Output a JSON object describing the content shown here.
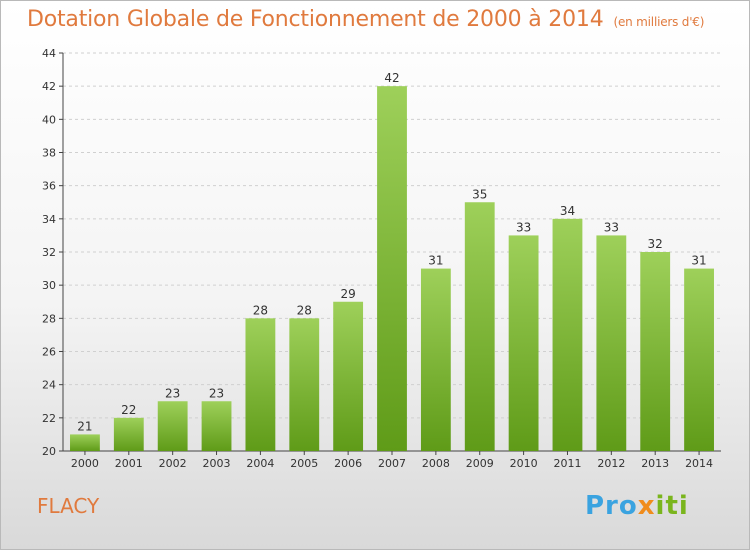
{
  "header": {
    "title": "Dotation Globale de Fonctionnement de 2000 à 2014",
    "subtitle": "(en milliers d'€)"
  },
  "footer": {
    "commune": "FLACY",
    "logo": {
      "part1": "Pro",
      "part2": "x",
      "part3": "iti"
    }
  },
  "colors": {
    "bar_light": "#9ed05a",
    "bar_dark": "#5f9b18",
    "title": "#e07a3e",
    "grid": "#d0d0d0"
  },
  "chart_data": {
    "type": "bar",
    "categories": [
      "2000",
      "2001",
      "2002",
      "2003",
      "2004",
      "2005",
      "2006",
      "2007",
      "2008",
      "2009",
      "2010",
      "2011",
      "2012",
      "2013",
      "2014"
    ],
    "values": [
      21,
      22,
      23,
      23,
      28,
      28,
      29,
      42,
      31,
      35,
      33,
      34,
      33,
      32,
      31
    ],
    "title": "Dotation Globale de Fonctionnement de 2000 à 2014",
    "xlabel": "",
    "ylabel": "",
    "ylim": [
      20,
      44
    ],
    "yticks": [
      20,
      22,
      24,
      26,
      28,
      30,
      32,
      34,
      36,
      38,
      40,
      42,
      44
    ],
    "grid": true,
    "data_labels": true
  }
}
